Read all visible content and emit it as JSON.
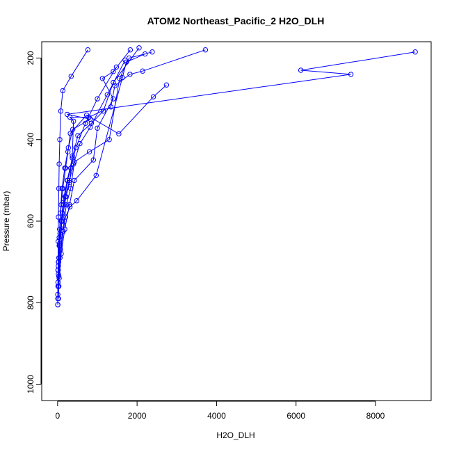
{
  "chart_data": {
    "type": "line",
    "title": "ATOM2 Northeast_Pacific_2 H2O_DLH",
    "xlabel": "H2O_DLH",
    "ylabel": "Pressure (mbar)",
    "xlim": [
      -400,
      9400
    ],
    "ylim": [
      1040,
      160
    ],
    "y_reversed": true,
    "x_ticks": [
      0,
      2000,
      4000,
      6000,
      8000
    ],
    "y_ticks": [
      200,
      400,
      600,
      800,
      1000
    ],
    "grid": false,
    "legend": "none",
    "color": "#0000ff",
    "series": [
      {
        "points": [
          [
            9000,
            185
          ],
          [
            6120,
            230
          ],
          [
            7380,
            240
          ],
          [
            240,
            338
          ],
          [
            820,
            350
          ],
          [
            380,
            375
          ],
          [
            270,
            420
          ],
          [
            180,
            470
          ],
          [
            110,
            520
          ],
          [
            70,
            580
          ],
          [
            40,
            640
          ],
          [
            25,
            700
          ],
          [
            10,
            760
          ],
          [
            5,
            805
          ]
        ]
      },
      {
        "points": [
          [
            760,
            180
          ],
          [
            340,
            245
          ],
          [
            130,
            280
          ],
          [
            80,
            330
          ],
          [
            55,
            400
          ],
          [
            40,
            460
          ],
          [
            30,
            520
          ],
          [
            20,
            590
          ],
          [
            15,
            650
          ],
          [
            10,
            720
          ],
          [
            5,
            780
          ],
          [
            4,
            805
          ]
        ]
      },
      {
        "points": [
          [
            1830,
            180
          ],
          [
            1400,
            233
          ],
          [
            1130,
            250
          ],
          [
            1400,
            300
          ],
          [
            1000,
            372
          ],
          [
            900,
            450
          ],
          [
            420,
            500
          ],
          [
            300,
            560
          ],
          [
            180,
            620
          ],
          [
            90,
            680
          ],
          [
            40,
            740
          ],
          [
            20,
            790
          ]
        ]
      },
      {
        "points": [
          [
            3720,
            180
          ],
          [
            2140,
            232
          ],
          [
            1820,
            240
          ],
          [
            1440,
            268
          ],
          [
            1340,
            320
          ],
          [
            790,
            345
          ],
          [
            310,
            345
          ],
          [
            400,
            355
          ],
          [
            370,
            440
          ],
          [
            300,
            505
          ],
          [
            210,
            540
          ],
          [
            110,
            600
          ],
          [
            55,
            660
          ],
          [
            20,
            730
          ],
          [
            8,
            790
          ]
        ]
      },
      {
        "points": [
          [
            2380,
            185
          ],
          [
            1800,
            200
          ],
          [
            1560,
            250
          ],
          [
            1300,
            400
          ],
          [
            800,
            430
          ],
          [
            420,
            455
          ],
          [
            330,
            520
          ],
          [
            220,
            560
          ],
          [
            150,
            610
          ],
          [
            70,
            670
          ],
          [
            30,
            735
          ],
          [
            10,
            790
          ]
        ]
      },
      {
        "points": [
          [
            2200,
            190
          ],
          [
            1730,
            210
          ],
          [
            1630,
            248
          ],
          [
            970,
            488
          ],
          [
            480,
            550
          ],
          [
            310,
            565
          ],
          [
            200,
            590
          ],
          [
            140,
            625
          ],
          [
            60,
            690
          ],
          [
            30,
            760
          ]
        ]
      },
      {
        "points": [
          [
            2740,
            266
          ],
          [
            2410,
            295
          ],
          [
            1540,
            386
          ],
          [
            730,
            340
          ],
          [
            320,
            385
          ],
          [
            260,
            430
          ],
          [
            200,
            470
          ],
          [
            130,
            520
          ],
          [
            90,
            560
          ],
          [
            50,
            620
          ],
          [
            20,
            700
          ]
        ]
      },
      {
        "points": [
          [
            2050,
            175
          ],
          [
            1400,
            260
          ],
          [
            1150,
            330
          ],
          [
            850,
            360
          ],
          [
            510,
            390
          ],
          [
            370,
            445
          ],
          [
            240,
            500
          ],
          [
            150,
            545
          ],
          [
            90,
            600
          ],
          [
            50,
            655
          ],
          [
            15,
            720
          ]
        ]
      },
      {
        "points": [
          [
            1700,
            205
          ],
          [
            1250,
            290
          ],
          [
            820,
            370
          ],
          [
            560,
            410
          ],
          [
            400,
            460
          ],
          [
            300,
            500
          ],
          [
            190,
            540
          ],
          [
            120,
            580
          ],
          [
            60,
            630
          ],
          [
            30,
            690
          ],
          [
            10,
            750
          ]
        ]
      },
      {
        "points": [
          [
            1480,
            222
          ],
          [
            1000,
            300
          ],
          [
            700,
            360
          ],
          [
            460,
            420
          ],
          [
            330,
            470
          ],
          [
            250,
            500
          ],
          [
            150,
            560
          ],
          [
            100,
            600
          ],
          [
            40,
            660
          ],
          [
            18,
            710
          ]
        ]
      }
    ]
  }
}
